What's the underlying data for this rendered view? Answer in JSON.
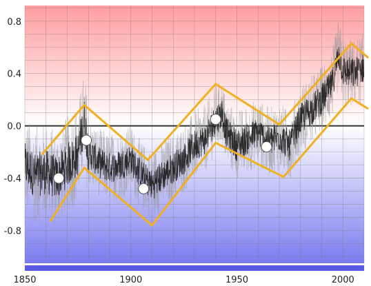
{
  "chart_data": {
    "type": "line",
    "title": "",
    "xlabel": "",
    "ylabel": "",
    "xlim": [
      1850,
      2010
    ],
    "ylim": [
      -1.05,
      0.92
    ],
    "x_ticks": [
      1850,
      1900,
      1950,
      2000
    ],
    "x_tick_labels": [
      "1850",
      "1900",
      "1950",
      "2000"
    ],
    "y_ticks": [
      0.8,
      0.4,
      0.0,
      -0.4,
      -0.8
    ],
    "y_tick_labels": [
      "0.8",
      "0.4",
      "0.0",
      "-0.4",
      "-0.8"
    ],
    "grid": true,
    "zero_line": 0.0,
    "background_gradient": {
      "top": "#ff9ea0",
      "middle": "#ffffff",
      "bottom": "#7b7bf0"
    },
    "series": [
      {
        "style": "noisy-trace",
        "color": "#111111",
        "x": [
          1850,
          1855,
          1860,
          1865,
          1870,
          1875,
          1878,
          1880,
          1885,
          1890,
          1895,
          1900,
          1905,
          1910,
          1915,
          1920,
          1925,
          1930,
          1935,
          1940,
          1943,
          1945,
          1950,
          1955,
          1960,
          1965,
          1970,
          1975,
          1980,
          1985,
          1990,
          1995,
          1998,
          2000,
          2005,
          2010
        ],
        "values": [
          -0.3,
          -0.38,
          -0.35,
          -0.4,
          -0.3,
          -0.22,
          0.05,
          -0.2,
          -0.28,
          -0.32,
          -0.3,
          -0.25,
          -0.38,
          -0.45,
          -0.38,
          -0.32,
          -0.25,
          -0.15,
          -0.1,
          0.05,
          0.1,
          -0.05,
          -0.15,
          -0.1,
          -0.05,
          -0.12,
          -0.08,
          -0.15,
          0.05,
          0.12,
          0.2,
          0.32,
          0.55,
          0.42,
          0.4,
          0.45
        ]
      },
      {
        "style": "envelope-upper",
        "color": "#f0b020",
        "x": [
          1858,
          1878,
          1908,
          1940,
          1970,
          2004,
          2012
        ],
        "values": [
          -0.22,
          0.16,
          -0.26,
          0.32,
          0.01,
          0.63,
          0.52
        ]
      },
      {
        "style": "envelope-lower",
        "color": "#f0b020",
        "x": [
          1862,
          1878,
          1910,
          1940,
          1972,
          2004,
          2012
        ],
        "values": [
          -0.73,
          -0.32,
          -0.76,
          -0.13,
          -0.39,
          0.21,
          0.13
        ]
      }
    ],
    "markers": {
      "color": "#ffffff",
      "points": [
        {
          "x": 1866,
          "y": -0.4
        },
        {
          "x": 1879,
          "y": -0.11
        },
        {
          "x": 1906,
          "y": -0.48
        },
        {
          "x": 1940,
          "y": 0.05
        },
        {
          "x": 1964,
          "y": -0.16
        }
      ]
    },
    "bottom_bar_color": "#5a5ae6"
  }
}
